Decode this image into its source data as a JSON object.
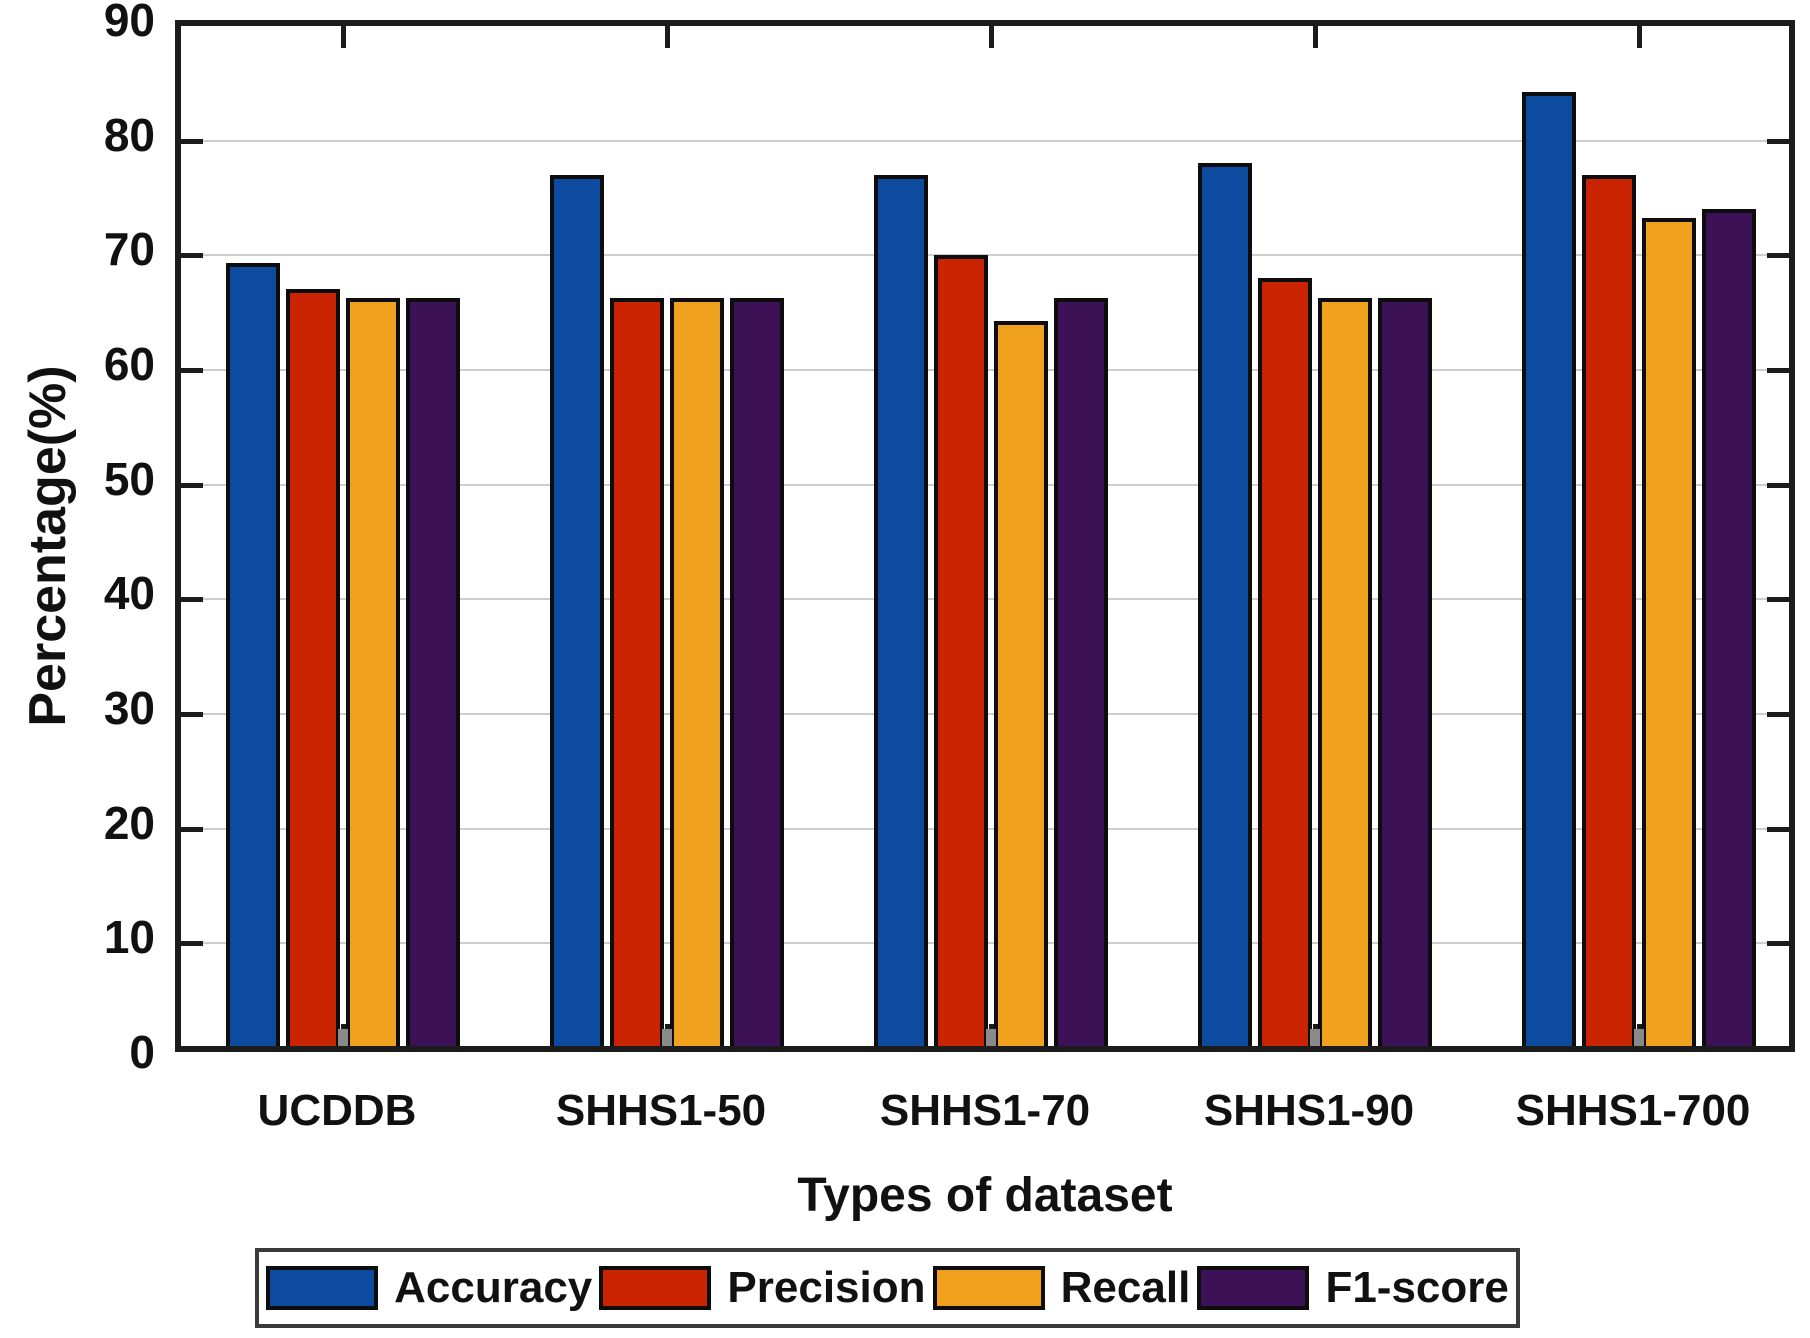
{
  "chart_data": {
    "type": "bar",
    "title": "",
    "xlabel": "Types of dataset",
    "ylabel": "Percentage(%)",
    "ylim": [
      0,
      90
    ],
    "ytick_step": 10,
    "grid": true,
    "legend_position": "bottom",
    "categories": [
      "UCDDB",
      "SHHS1-50",
      "SHHS1-70",
      "SHHS1-90",
      "SHHS1-700"
    ],
    "series": [
      {
        "name": "Accuracy",
        "color": "#0d4ba0",
        "values": [
          68.3,
          76.0,
          76.0,
          77.0,
          83.2
        ]
      },
      {
        "name": "Precision",
        "color": "#c92301",
        "values": [
          66.0,
          65.2,
          69.0,
          67.0,
          76.0
        ]
      },
      {
        "name": "Recall",
        "color": "#f0a11e",
        "values": [
          65.2,
          65.2,
          63.2,
          65.2,
          72.2
        ]
      },
      {
        "name": "F1-score",
        "color": "#3d1156",
        "values": [
          65.2,
          65.2,
          65.2,
          65.2,
          73.0
        ]
      }
    ],
    "gray_stub": {
      "value": 1.5,
      "color": "#8a8a8a",
      "position": "small artifact bar between Precision and Recall in every group"
    },
    "colors": {
      "axis": "#1c1c1c",
      "gridline": "#cdcdcd",
      "text": "#111111",
      "background": "#ffffff"
    }
  }
}
